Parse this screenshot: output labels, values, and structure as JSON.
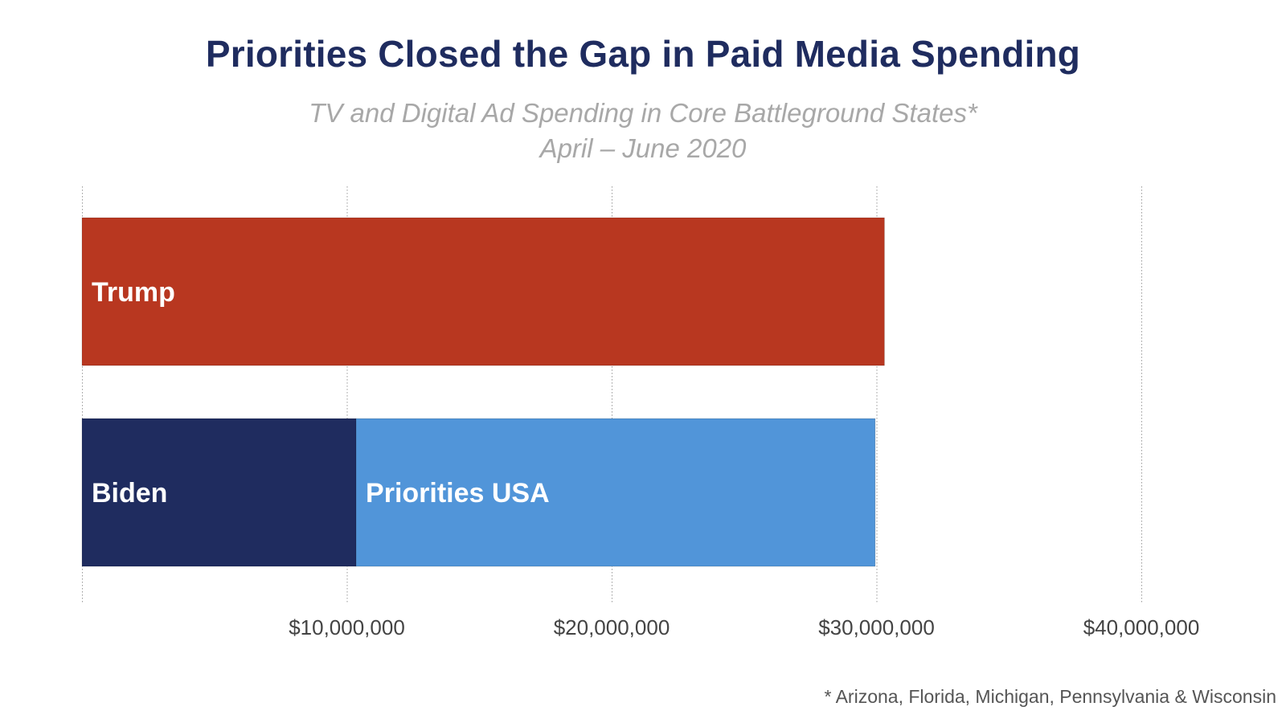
{
  "chart_data": {
    "type": "bar",
    "orientation": "horizontal",
    "stacked": true,
    "title": "Priorities Closed the Gap in Paid Media Spending",
    "subtitle_lines": [
      "TV and Digital Ad Spending in Core Battleground States*",
      "April – June 2020"
    ],
    "footnote": "* Arizona, Florida, Michigan, Pennsylvania & Wisconsin",
    "xlim": [
      0,
      40000000
    ],
    "x_ticks": [
      10000000,
      20000000,
      30000000,
      40000000
    ],
    "x_tick_labels": [
      "$10,000,000",
      "$20,000,000",
      "$30,000,000",
      "$40,000,000"
    ],
    "grid": "vertical dotted",
    "rows": [
      {
        "segments": [
          {
            "name": "Trump",
            "value": 30300000,
            "color": "#b83720"
          }
        ]
      },
      {
        "segments": [
          {
            "name": "Biden",
            "value": 10350000,
            "color": "#1f2c5f"
          },
          {
            "name": "Priorities USA",
            "value": 19600000,
            "color": "#5195d9"
          }
        ]
      }
    ]
  }
}
